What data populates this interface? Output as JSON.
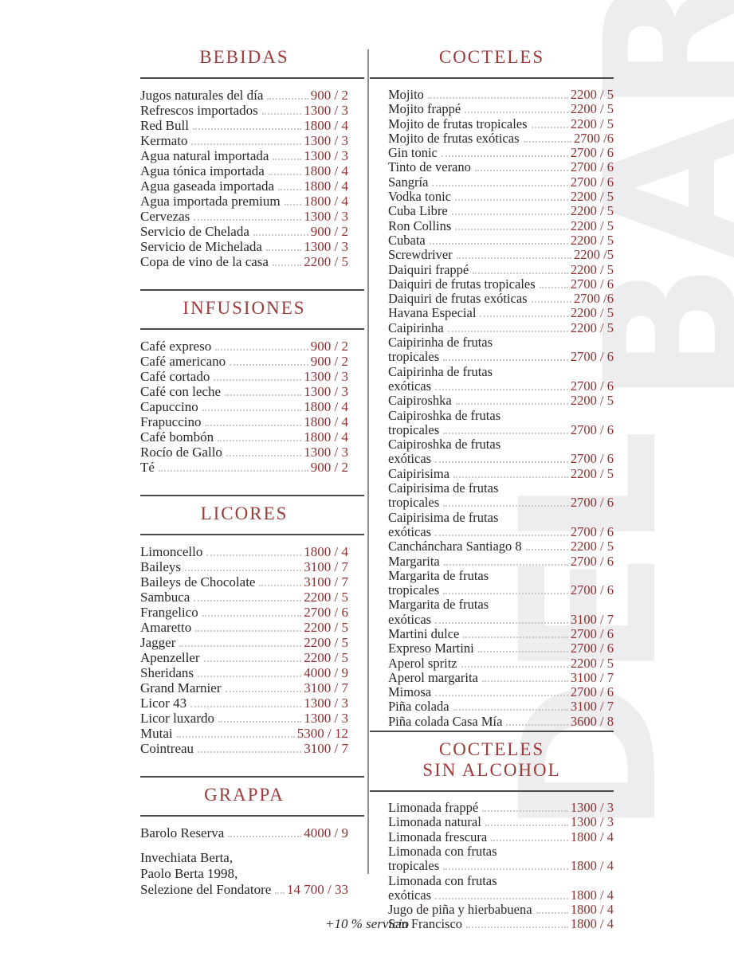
{
  "watermark": {
    "lines": [
      "DEL",
      "BAR"
    ]
  },
  "footer": {
    "note": "+10 % servicio"
  },
  "colors": {
    "heading": "#9c3b3b",
    "price": "#8d2f30",
    "text": "#2b2627",
    "watermark": "#edecee"
  },
  "columns": {
    "left": {
      "sections": [
        {
          "title_lines": [
            "BEBIDAS"
          ],
          "items": [
            {
              "name_lines": [
                "Jugos naturales del día"
              ],
              "price": "900 / 2"
            },
            {
              "name_lines": [
                "Refrescos importados"
              ],
              "price": "1300 / 3"
            },
            {
              "name_lines": [
                "Red Bull"
              ],
              "price": "1800 / 4"
            },
            {
              "name_lines": [
                "Kermato"
              ],
              "price": "1300 / 3"
            },
            {
              "name_lines": [
                "Agua natural importada"
              ],
              "price": "1300 / 3"
            },
            {
              "name_lines": [
                "Agua tónica importada"
              ],
              "price": "1800 / 4"
            },
            {
              "name_lines": [
                "Agua gaseada importada"
              ],
              "price": "1800 / 4"
            },
            {
              "name_lines": [
                "Agua importada premium"
              ],
              "price": "1800 / 4"
            },
            {
              "name_lines": [
                "Cervezas"
              ],
              "price": "1300 / 3"
            },
            {
              "name_lines": [
                "Servicio de Chelada"
              ],
              "price": "900 / 2"
            },
            {
              "name_lines": [
                "Servicio de Michelada"
              ],
              "price": "1300 / 3"
            },
            {
              "name_lines": [
                "Copa de vino de la casa"
              ],
              "price": "2200 / 5"
            }
          ]
        },
        {
          "title_lines": [
            "INFUSIONES"
          ],
          "items": [
            {
              "name_lines": [
                "Café expreso"
              ],
              "price": "900 / 2"
            },
            {
              "name_lines": [
                "Café americano"
              ],
              "price": "900 / 2"
            },
            {
              "name_lines": [
                "Café cortado"
              ],
              "price": "1300 / 3"
            },
            {
              "name_lines": [
                "Café con leche"
              ],
              "price": "1300 / 3"
            },
            {
              "name_lines": [
                "Capuccino"
              ],
              "price": "1800 / 4"
            },
            {
              "name_lines": [
                "Frapuccino"
              ],
              "price": "1800 / 4"
            },
            {
              "name_lines": [
                "Café bombón"
              ],
              "price": "1800 / 4"
            },
            {
              "name_lines": [
                "Rocío de Gallo"
              ],
              "price": "1300 / 3"
            },
            {
              "name_lines": [
                "Té"
              ],
              "price": "900 / 2"
            }
          ]
        },
        {
          "title_lines": [
            "LICORES"
          ],
          "items": [
            {
              "name_lines": [
                "Limoncello"
              ],
              "price": "1800 / 4"
            },
            {
              "name_lines": [
                "Baileys"
              ],
              "price": "3100 / 7"
            },
            {
              "name_lines": [
                "Baileys de Chocolate"
              ],
              "price": "3100 / 7"
            },
            {
              "name_lines": [
                "Sambuca"
              ],
              "price": "2200 / 5"
            },
            {
              "name_lines": [
                "Frangelico"
              ],
              "price": "2700 / 6"
            },
            {
              "name_lines": [
                "Amaretto"
              ],
              "price": "2200 / 5"
            },
            {
              "name_lines": [
                "Jagger"
              ],
              "price": "2200 / 5"
            },
            {
              "name_lines": [
                "Apenzeller"
              ],
              "price": "2200 / 5"
            },
            {
              "name_lines": [
                "Sheridans"
              ],
              "price": "4000 / 9"
            },
            {
              "name_lines": [
                "Grand Marnier"
              ],
              "price": "3100 / 7"
            },
            {
              "name_lines": [
                "Licor 43"
              ],
              "price": "1300 / 3"
            },
            {
              "name_lines": [
                "Licor luxardo"
              ],
              "price": "1300 / 3"
            },
            {
              "name_lines": [
                "Mutai"
              ],
              "price": "5300 / 12"
            },
            {
              "name_lines": [
                "Cointreau"
              ],
              "price": "3100 / 7"
            }
          ]
        },
        {
          "title_lines": [
            "GRAPPA"
          ],
          "items": [
            {
              "name_lines": [
                "Barolo Reserva"
              ],
              "price": "4000 / 9"
            },
            {
              "name_lines": [
                "Invechiata Berta,",
                "Paolo Berta 1998,",
                "Selezione del Fondatore"
              ],
              "price": "14 700 / 33",
              "gap_before": true
            }
          ]
        }
      ]
    },
    "right": {
      "sections": [
        {
          "title_lines": [
            "COCTELES"
          ],
          "items": [
            {
              "name_lines": [
                "Mojito"
              ],
              "price": "2200 / 5"
            },
            {
              "name_lines": [
                "Mojito frappé"
              ],
              "price": "2200 / 5"
            },
            {
              "name_lines": [
                "Mojito de frutas tropicales"
              ],
              "price": "2200 / 5"
            },
            {
              "name_lines": [
                "Mojito de frutas exóticas"
              ],
              "price": "2700 /6"
            },
            {
              "name_lines": [
                "Gin tonic"
              ],
              "price": "2700 / 6"
            },
            {
              "name_lines": [
                "Tinto de verano"
              ],
              "price": "2700 / 6"
            },
            {
              "name_lines": [
                "Sangría"
              ],
              "price": "2700 / 6"
            },
            {
              "name_lines": [
                "Vodka tonic"
              ],
              "price": "2200 / 5"
            },
            {
              "name_lines": [
                "Cuba Libre"
              ],
              "price": "2200 / 5"
            },
            {
              "name_lines": [
                "Ron Collins"
              ],
              "price": "2200 / 5"
            },
            {
              "name_lines": [
                "Cubata"
              ],
              "price": "2200 / 5"
            },
            {
              "name_lines": [
                "Screwdriver"
              ],
              "price": "2200 /5"
            },
            {
              "name_lines": [
                "Daiquiri frappé"
              ],
              "price": "2200 / 5"
            },
            {
              "name_lines": [
                "Daiquiri de frutas tropicales"
              ],
              "price": "2700 / 6"
            },
            {
              "name_lines": [
                "Daiquiri de frutas exóticas"
              ],
              "price": "2700 /6"
            },
            {
              "name_lines": [
                "Havana Especial"
              ],
              "price": "2200 / 5"
            },
            {
              "name_lines": [
                "Caipirinha"
              ],
              "price": "2200 / 5"
            },
            {
              "name_lines": [
                "Caipirinha de frutas",
                "tropicales"
              ],
              "price": "2700 / 6"
            },
            {
              "name_lines": [
                "Caipirinha de frutas",
                "exóticas"
              ],
              "price": "2700 / 6"
            },
            {
              "name_lines": [
                "Caipiroshka"
              ],
              "price": "2200 / 5"
            },
            {
              "name_lines": [
                "Caipiroshka de frutas",
                "tropicales"
              ],
              "price": "2700 / 6"
            },
            {
              "name_lines": [
                "Caipiroshka de frutas",
                "exóticas"
              ],
              "price": "2700 / 6"
            },
            {
              "name_lines": [
                "Caipirisima"
              ],
              "price": "2200 / 5"
            },
            {
              "name_lines": [
                "Caipirisima de frutas",
                "tropicales"
              ],
              "price": "2700 / 6"
            },
            {
              "name_lines": [
                "Caipirisima de frutas",
                "exóticas"
              ],
              "price": "2700 / 6"
            },
            {
              "name_lines": [
                "Canchánchara Santiago 8"
              ],
              "price": "2200 / 5"
            },
            {
              "name_lines": [
                "Margarita"
              ],
              "price": "2700 / 6"
            },
            {
              "name_lines": [
                "Margarita de frutas",
                "tropicales"
              ],
              "price": "2700 / 6"
            },
            {
              "name_lines": [
                "Margarita de frutas",
                "exóticas"
              ],
              "price": "3100 / 7"
            },
            {
              "name_lines": [
                "Martini dulce"
              ],
              "price": "2700 / 6"
            },
            {
              "name_lines": [
                "Expreso Martini"
              ],
              "price": "2700 / 6"
            },
            {
              "name_lines": [
                "Aperol spritz"
              ],
              "price": "2200 / 5"
            },
            {
              "name_lines": [
                "Aperol margarita"
              ],
              "price": "3100 / 7"
            },
            {
              "name_lines": [
                "Mimosa"
              ],
              "price": "2700 / 6"
            },
            {
              "name_lines": [
                "Piña colada"
              ],
              "price": "3100 / 7"
            },
            {
              "name_lines": [
                "Piña colada Casa Mía"
              ],
              "price": "3600 / 8"
            }
          ]
        },
        {
          "title_lines": [
            "COCTELES",
            "SIN ALCOHOL"
          ],
          "items": [
            {
              "name_lines": [
                "Limonada frappé"
              ],
              "price": "1300 / 3"
            },
            {
              "name_lines": [
                "Limonada natural"
              ],
              "price": "1300 / 3"
            },
            {
              "name_lines": [
                "Limonada frescura"
              ],
              "price": "1800 / 4"
            },
            {
              "name_lines": [
                "Limonada con frutas",
                "tropicales"
              ],
              "price": "1800 / 4"
            },
            {
              "name_lines": [
                "Limonada con frutas",
                "exóticas"
              ],
              "price": "1800 / 4"
            },
            {
              "name_lines": [
                "Jugo de piña y hierbabuena"
              ],
              "price": "1800 / 4"
            },
            {
              "name_lines": [
                "San Francisco"
              ],
              "price": "1800 / 4"
            }
          ]
        }
      ]
    }
  }
}
